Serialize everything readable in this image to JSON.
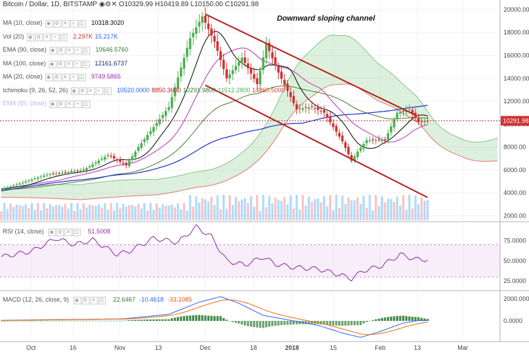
{
  "header": {
    "symbol_title": "Bitcoin / Dollar, 1D, BITSTAMP",
    "ohlc": [
      "O10329.99",
      "H10419.89",
      "L10150.00",
      "C10291.98"
    ]
  },
  "indicators": [
    {
      "label": "MA (10, close)",
      "values": [
        "10318.3020"
      ],
      "colors": [
        "#000000"
      ]
    },
    {
      "label": "Vol (20)",
      "values": [
        "2.297K",
        "15.217K"
      ],
      "colors": [
        "#cc3333",
        "#2962ff"
      ]
    },
    {
      "label": "EMA (90, close)",
      "values": [
        "10646.5760"
      ],
      "colors": [
        "#2e7d32"
      ]
    },
    {
      "label": "MA (100, close)",
      "values": [
        "12161.6737"
      ],
      "colors": [
        "#1a237e"
      ]
    },
    {
      "label": "MA (20, close)",
      "values": [
        "9749.5865"
      ],
      "colors": [
        "#9c27b0"
      ]
    },
    {
      "label": "Ichimoku (9, 26, 52, 26)",
      "values": [
        "10520.0000",
        "8850.3600",
        "10291.9800",
        "11512.2800",
        "14860.5000"
      ],
      "colors": [
        "#2962ff",
        "#b71c1c",
        "#2e7d32",
        "#4caf50",
        "#e53935"
      ]
    },
    {
      "label": "EMA (55, close)",
      "values": [],
      "colors": []
    }
  ],
  "rsi_legend": {
    "label": "RSI (14, close)",
    "value": "51.5008"
  },
  "macd_legend": {
    "label": "MACD (12, 26, close, 9)",
    "values": [
      "22.6467",
      "-10.4618",
      "-33.1085"
    ],
    "colors": [
      "#2e7d32",
      "#2962ff",
      "#e65100"
    ]
  },
  "annotation": "Downward sloping channel",
  "last_price_label": "10291.98",
  "colors": {
    "up": "#4caf50",
    "down": "#d32f2f",
    "channel": "#b71c1c",
    "ma10": "#000000",
    "ma20": "#c040c0",
    "ma100": "#1f2bd0",
    "ema90": "#4a7a30",
    "cloud_green": "#9ed39e",
    "cloud_red": "#f4a3a3"
  },
  "chart_data": {
    "type": "candlestick",
    "x_ticks": [
      "Oct",
      "16",
      "Nov",
      "13",
      "Dec",
      "18",
      "2018",
      "15",
      "Feb",
      "13",
      "Mar"
    ],
    "x_ticks_note": "January tick printed as 2018",
    "price_axis": {
      "ticks": [
        "20000.00",
        "18000.00",
        "16000.00",
        "14000.00",
        "12000.00",
        "10000.00",
        "8000.00",
        "6000.00",
        "4000.00",
        "2000.00"
      ],
      "range": [
        1600,
        20600
      ]
    },
    "rsi_axis": {
      "ticks": [
        "75.0000",
        "50.0000",
        "25.0000"
      ],
      "band": [
        30,
        70
      ]
    },
    "macd_axis": {
      "ticks": [
        "2000.0000",
        "0.0000"
      ]
    },
    "price_anchors": [
      [
        0,
        4300
      ],
      [
        15,
        5600
      ],
      [
        27,
        6000
      ],
      [
        35,
        7300
      ],
      [
        41,
        6400
      ],
      [
        45,
        8000
      ],
      [
        55,
        11500
      ],
      [
        62,
        17500
      ],
      [
        66,
        19400
      ],
      [
        70,
        17200
      ],
      [
        74,
        14000
      ],
      [
        79,
        15800
      ],
      [
        84,
        13500
      ],
      [
        87,
        17000
      ],
      [
        91,
        14500
      ],
      [
        97,
        11300
      ],
      [
        102,
        11500
      ],
      [
        106,
        11000
      ],
      [
        112,
        8500
      ],
      [
        115,
        6800
      ],
      [
        117,
        7600
      ],
      [
        120,
        8600
      ],
      [
        126,
        8600
      ],
      [
        130,
        11000
      ],
      [
        134,
        11300
      ],
      [
        137,
        10200
      ],
      [
        140,
        10292
      ]
    ],
    "channel_upper": [
      [
        67,
        19600
      ],
      [
        136,
        10800
      ]
    ],
    "channel_lower": [
      [
        67,
        13400
      ],
      [
        140,
        3600
      ]
    ],
    "rsi_anchors": [
      [
        0,
        55
      ],
      [
        10,
        62
      ],
      [
        18,
        78
      ],
      [
        24,
        70
      ],
      [
        30,
        76
      ],
      [
        38,
        58
      ],
      [
        42,
        62
      ],
      [
        50,
        78
      ],
      [
        58,
        73
      ],
      [
        64,
        92
      ],
      [
        69,
        80
      ],
      [
        74,
        50
      ],
      [
        80,
        45
      ],
      [
        86,
        55
      ],
      [
        90,
        46
      ],
      [
        96,
        42
      ],
      [
        104,
        40
      ],
      [
        110,
        34
      ],
      [
        115,
        28
      ],
      [
        119,
        38
      ],
      [
        125,
        44
      ],
      [
        131,
        58
      ],
      [
        136,
        52
      ],
      [
        140,
        51.5
      ]
    ],
    "macd_anchors": [
      [
        0,
        50
      ],
      [
        20,
        120
      ],
      [
        40,
        180
      ],
      [
        55,
        600
      ],
      [
        65,
        1700
      ],
      [
        72,
        2200
      ],
      [
        78,
        1600
      ],
      [
        86,
        500
      ],
      [
        96,
        0
      ],
      [
        104,
        -400
      ],
      [
        112,
        -1100
      ],
      [
        118,
        -1500
      ],
      [
        124,
        -1000
      ],
      [
        132,
        -200
      ],
      [
        137,
        40
      ],
      [
        140,
        22.6
      ]
    ]
  }
}
